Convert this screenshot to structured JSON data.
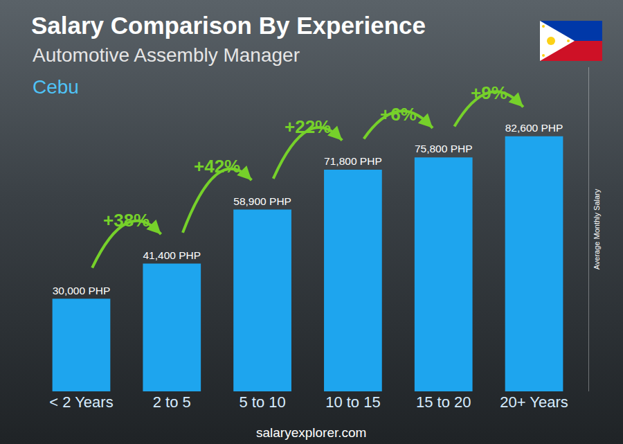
{
  "chart_data": {
    "type": "bar",
    "title": "Salary Comparison By Experience",
    "subtitle": "Automotive Assembly Manager",
    "location": "Cebu",
    "ylabel": "Average Monthly Salary",
    "source": "salaryexplorer.com",
    "categories": [
      "< 2 Years",
      "2 to 5",
      "5 to 10",
      "10 to 15",
      "15 to 20",
      "20+ Years"
    ],
    "values": [
      30000,
      41400,
      58900,
      71800,
      75800,
      82600
    ],
    "value_labels": [
      "30,000 PHP",
      "41,400 PHP",
      "58,900 PHP",
      "71,800 PHP",
      "75,800 PHP",
      "82,600 PHP"
    ],
    "annotations": [
      "+38%",
      "+42%",
      "+22%",
      "+6%",
      "+9%"
    ],
    "color": "#1ea5ee",
    "ylim": [
      0,
      105000
    ],
    "data_labels": true,
    "tick_labels": "x",
    "grid": false
  }
}
